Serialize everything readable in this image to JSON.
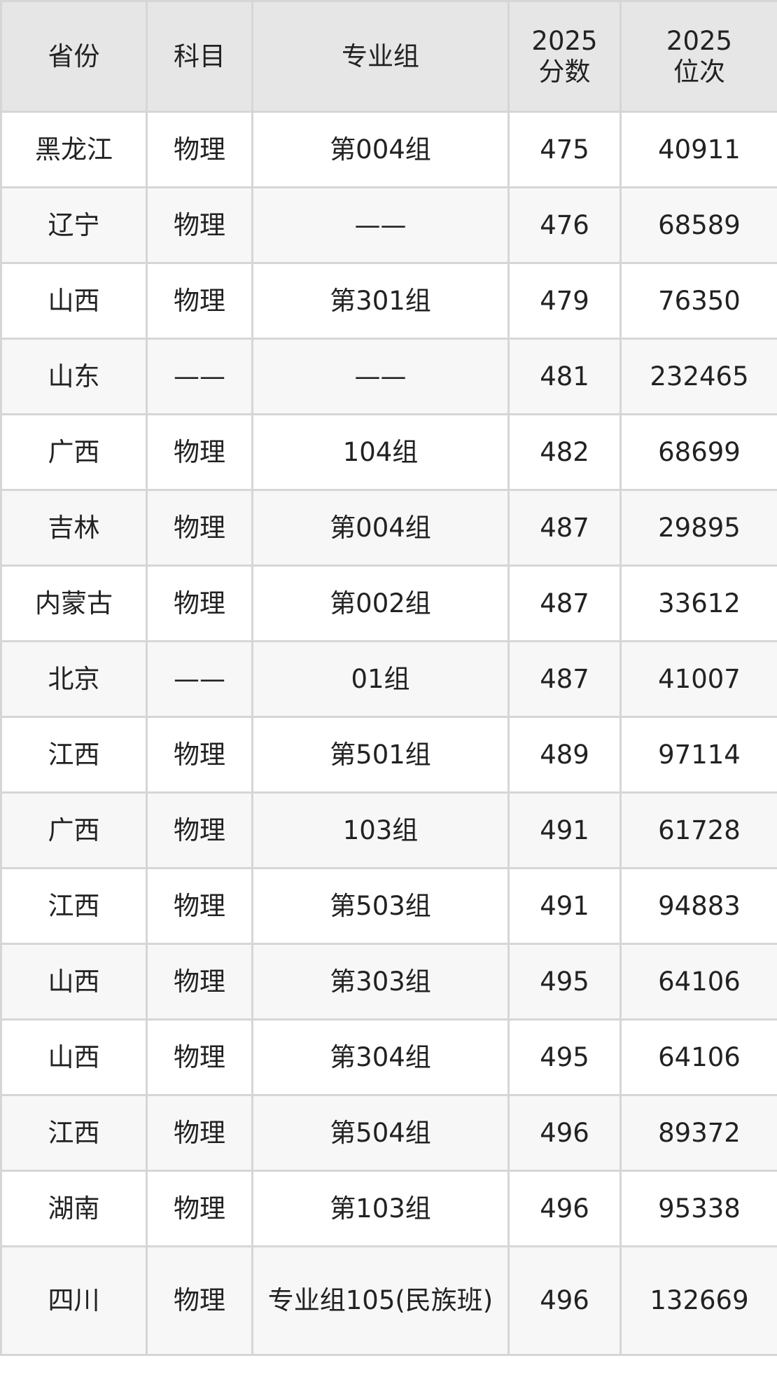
{
  "table": {
    "headers": [
      "省份",
      "科目",
      "专业组",
      "2025\n分数",
      "2025\n位次"
    ],
    "header_lines": [
      [
        "省份"
      ],
      [
        "科目"
      ],
      [
        "专业组"
      ],
      [
        "2025",
        "分数"
      ],
      [
        "2025",
        "位次"
      ]
    ],
    "rows": [
      [
        "黑龙江",
        "物理",
        "第004组",
        "475",
        "40911"
      ],
      [
        "辽宁",
        "物理",
        "——",
        "476",
        "68589"
      ],
      [
        "山西",
        "物理",
        "第301组",
        "479",
        "76350"
      ],
      [
        "山东",
        "——",
        "——",
        "481",
        "232465"
      ],
      [
        "广西",
        "物理",
        "104组",
        "482",
        "68699"
      ],
      [
        "吉林",
        "物理",
        "第004组",
        "487",
        "29895"
      ],
      [
        "内蒙古",
        "物理",
        "第002组",
        "487",
        "33612"
      ],
      [
        "北京",
        "——",
        "01组",
        "487",
        "41007"
      ],
      [
        "江西",
        "物理",
        "第501组",
        "489",
        "97114"
      ],
      [
        "广西",
        "物理",
        "103组",
        "491",
        "61728"
      ],
      [
        "江西",
        "物理",
        "第503组",
        "491",
        "94883"
      ],
      [
        "山西",
        "物理",
        "第303组",
        "495",
        "64106"
      ],
      [
        "山西",
        "物理",
        "第304组",
        "495",
        "64106"
      ],
      [
        "江西",
        "物理",
        "第504组",
        "496",
        "89372"
      ],
      [
        "湖南",
        "物理",
        "第103组",
        "496",
        "95338"
      ],
      [
        "四川",
        "物理",
        "专业组105(民族班)",
        "496",
        "132669"
      ]
    ]
  }
}
